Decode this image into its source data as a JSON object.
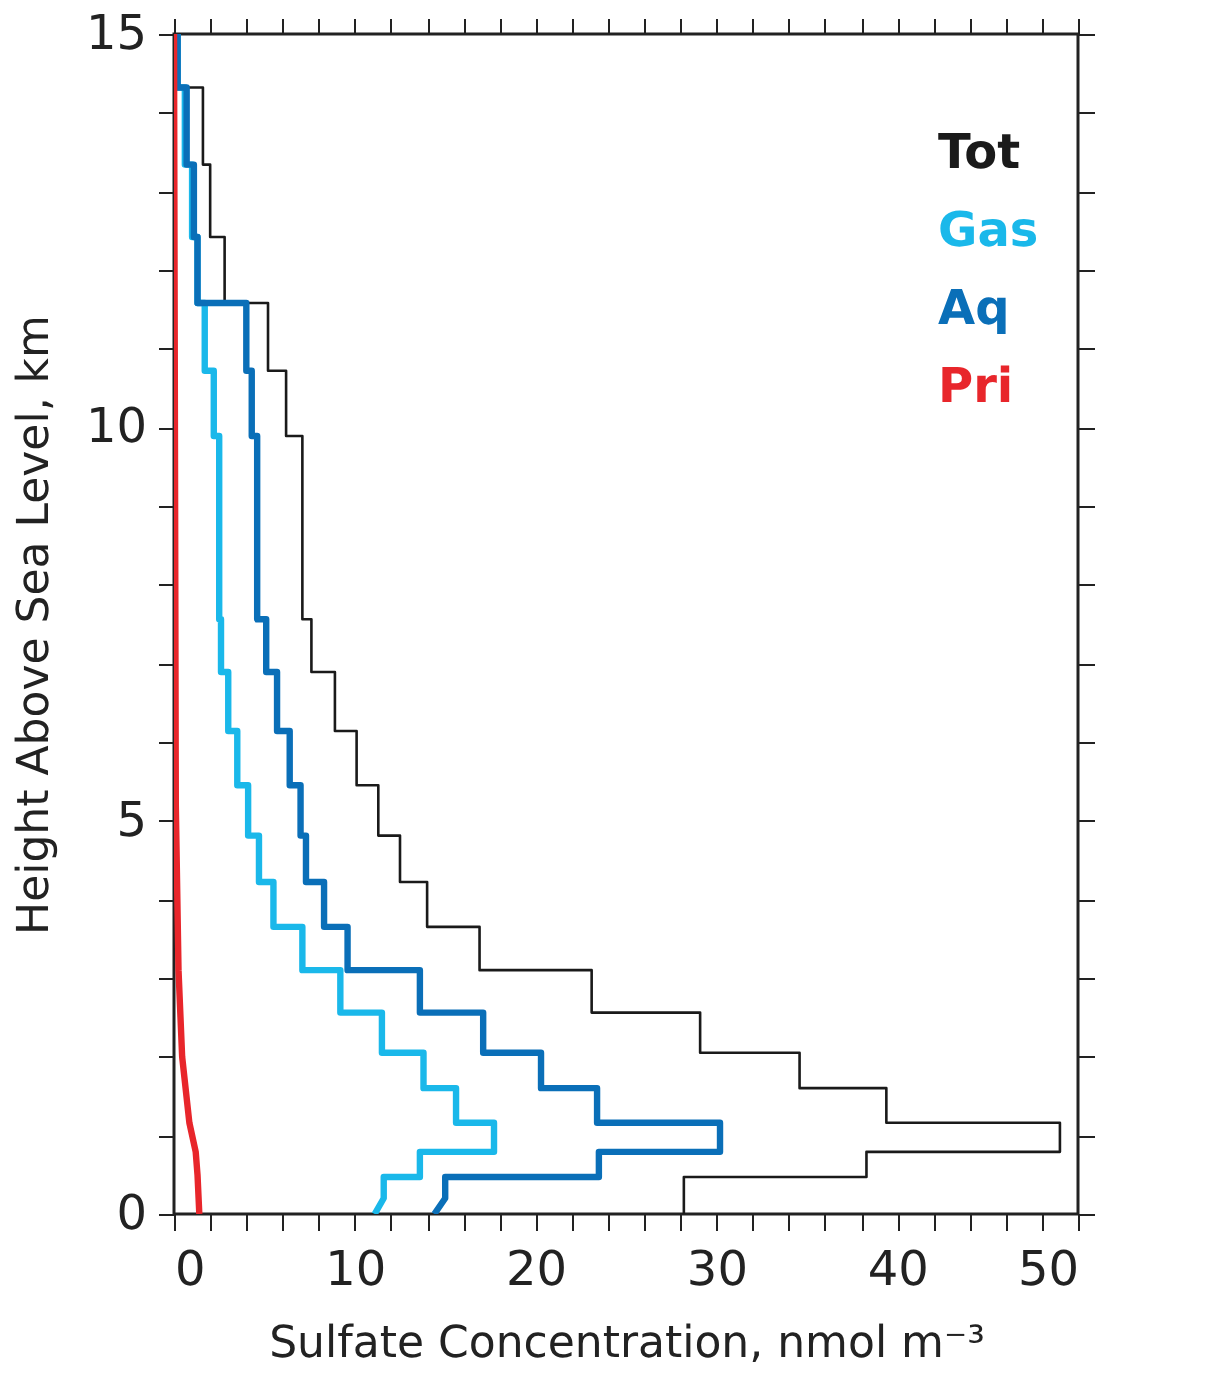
{
  "chart_data": {
    "type": "line",
    "xlabel": "Sulfate Concentration, nmol m⁻³",
    "ylabel": "Height Above Sea Level, km",
    "xlim": [
      0,
      50
    ],
    "ylim": [
      0,
      15
    ],
    "xticks": [
      0,
      {
        "value": 2,
        "label": null
      },
      {
        "value": 4,
        "label": null
      },
      {
        "value": 6,
        "label": null
      },
      {
        "value": 8,
        "label": null
      },
      10,
      {
        "value": 12,
        "label": null
      },
      {
        "value": 14,
        "label": null
      },
      {
        "value": 16,
        "label": null
      },
      {
        "value": 18,
        "label": null
      },
      20,
      {
        "value": 22,
        "label": null
      },
      {
        "value": 24,
        "label": null
      },
      {
        "value": 26,
        "label": null
      },
      {
        "value": 28,
        "label": null
      },
      30,
      {
        "value": 32,
        "label": null
      },
      {
        "value": 34,
        "label": null
      },
      {
        "value": 36,
        "label": null
      },
      {
        "value": 38,
        "label": null
      },
      40,
      {
        "value": 42,
        "label": null
      },
      {
        "value": 44,
        "label": null
      },
      {
        "value": 46,
        "label": null
      },
      {
        "value": 48,
        "label": null
      },
      50
    ],
    "yticks": [
      0,
      {
        "value": 1,
        "label": null
      },
      {
        "value": 2,
        "label": null
      },
      {
        "value": 3,
        "label": null
      },
      {
        "value": 4,
        "label": null
      },
      5,
      {
        "value": 6,
        "label": null
      },
      {
        "value": 7,
        "label": null
      },
      {
        "value": 8,
        "label": null
      },
      {
        "value": 9,
        "label": null
      },
      10,
      {
        "value": 11,
        "label": null
      },
      {
        "value": 12,
        "label": null
      },
      {
        "value": 13,
        "label": null
      },
      {
        "value": 14,
        "label": null
      },
      15
    ],
    "grid": false,
    "legend": "top right",
    "marker": "none",
    "line_style": "solid",
    "series": [
      {
        "name": "Tot",
        "color": "#1a1a1a",
        "x": [
          28.2,
          28.2,
          38.3,
          38.3,
          49.0,
          49.0,
          39.4,
          39.4,
          34.6,
          34.6,
          29.1,
          29.1,
          23.1,
          23.1,
          16.9,
          16.9,
          14.0,
          14.0,
          12.5,
          12.5,
          11.3,
          11.3,
          10.1,
          10.1,
          8.9,
          8.9,
          7.6,
          7.6,
          7.1,
          7.1,
          6.2,
          6.2,
          5.2,
          5.2,
          2.8,
          2.8,
          2.0,
          2.0,
          1.6,
          1.6,
          0.2,
          0.2
        ],
        "values": [
          0,
          0.47,
          0.47,
          0.79,
          0.79,
          1.16,
          1.16,
          1.6,
          1.6,
          2.05,
          2.05,
          2.56,
          2.56,
          3.1,
          3.1,
          3.65,
          3.65,
          4.22,
          4.22,
          4.81,
          4.81,
          5.45,
          5.45,
          6.14,
          6.14,
          6.89,
          6.89,
          7.56,
          7.56,
          9.89,
          9.89,
          10.72,
          10.72,
          11.58,
          11.58,
          12.42,
          12.42,
          13.34,
          13.34,
          14.32,
          14.32,
          15
        ]
      },
      {
        "name": "Gas",
        "color": "#1ab8ea",
        "x": [
          11.1,
          11.6,
          11.6,
          13.6,
          13.6,
          17.7,
          17.7,
          15.6,
          15.6,
          13.8,
          13.8,
          11.5,
          11.5,
          9.2,
          9.2,
          7.1,
          7.1,
          5.5,
          5.5,
          4.7,
          4.7,
          4.1,
          4.1,
          3.5,
          3.5,
          3.0,
          3.0,
          2.6,
          2.6,
          2.5,
          2.5,
          2.2,
          2.2,
          1.7,
          1.7,
          1.3,
          1.3,
          1.0,
          1.0,
          0.6,
          0.6,
          0.2,
          0.2
        ],
        "values": [
          0,
          0.2,
          0.47,
          0.47,
          0.79,
          0.79,
          1.16,
          1.16,
          1.6,
          1.6,
          2.05,
          2.05,
          2.56,
          2.56,
          3.1,
          3.1,
          3.65,
          3.65,
          4.22,
          4.22,
          4.81,
          4.81,
          5.45,
          5.45,
          6.14,
          6.14,
          6.89,
          6.89,
          7.56,
          7.56,
          9.89,
          9.89,
          10.72,
          10.72,
          11.58,
          11.58,
          12.42,
          12.42,
          13.34,
          13.34,
          14.32,
          14.32,
          15
        ]
      },
      {
        "name": "Aq",
        "color": "#0a6fb8",
        "x": [
          14.4,
          15.0,
          15.0,
          23.5,
          23.5,
          30.2,
          30.2,
          23.4,
          23.4,
          20.3,
          20.3,
          17.1,
          17.1,
          13.6,
          13.6,
          9.6,
          9.6,
          8.3,
          8.3,
          7.3,
          7.3,
          7.0,
          7.0,
          6.4,
          6.4,
          5.7,
          5.7,
          5.1,
          5.1,
          4.6,
          4.6,
          4.3,
          4.3,
          4.0,
          4.0,
          1.3,
          1.3,
          1.1,
          1.1,
          0.7,
          0.7,
          0.2,
          0.2
        ],
        "values": [
          0,
          0.2,
          0.47,
          0.47,
          0.79,
          0.79,
          1.16,
          1.16,
          1.6,
          1.6,
          2.05,
          2.05,
          2.56,
          2.56,
          3.1,
          3.1,
          3.65,
          3.65,
          4.22,
          4.22,
          4.81,
          4.81,
          5.45,
          5.45,
          6.14,
          6.14,
          6.89,
          6.89,
          7.56,
          7.56,
          9.89,
          9.89,
          10.72,
          10.72,
          11.58,
          11.58,
          12.42,
          12.42,
          13.34,
          13.34,
          14.32,
          14.32,
          15
        ]
      },
      {
        "name": "Pri",
        "color": "#e8262b",
        "x": [
          1.4,
          1.3,
          1.2,
          0.85,
          0.45,
          0.25,
          0.1,
          0.0
        ],
        "values": [
          0,
          0.5,
          0.79,
          1.16,
          2.0,
          3.1,
          5.2,
          15
        ]
      }
    ]
  }
}
